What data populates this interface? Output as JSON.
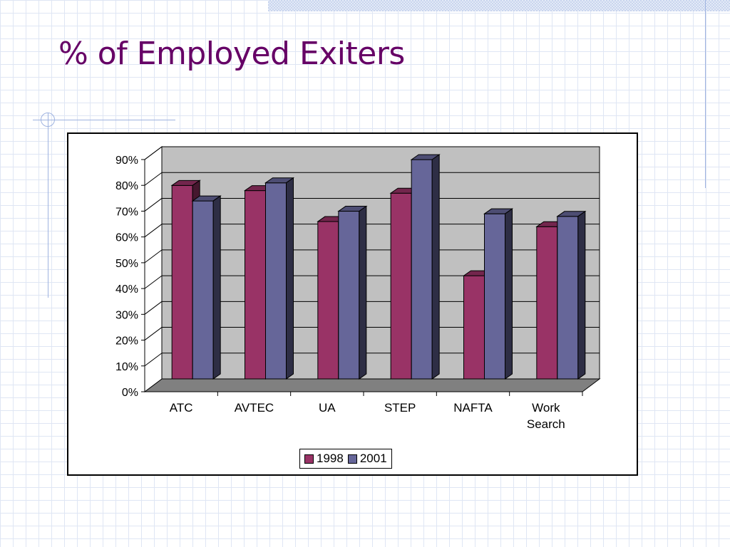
{
  "slide": {
    "title": "% of Employed Exiters"
  },
  "colors": {
    "series_1998": "#993366",
    "series_2001": "#666699",
    "title": "#660066",
    "wall": "#c0c0c0",
    "floor": "#808080"
  },
  "chart_data": {
    "type": "bar",
    "title": "",
    "categories": [
      "ATC",
      "AVTEC",
      "UA",
      "STEP",
      "NAFTA",
      "Work Search"
    ],
    "series": [
      {
        "name": "1998",
        "values": [
          75,
          73,
          61,
          72,
          40,
          59
        ]
      },
      {
        "name": "2001",
        "values": [
          69,
          76,
          65,
          85,
          64,
          63
        ]
      }
    ],
    "ylim": [
      0,
      90
    ],
    "yticks": [
      "0%",
      "10%",
      "20%",
      "30%",
      "40%",
      "50%",
      "60%",
      "70%",
      "80%",
      "90%"
    ],
    "grid": true,
    "legend": "bottom-center",
    "style": "3d-clustered-column"
  }
}
